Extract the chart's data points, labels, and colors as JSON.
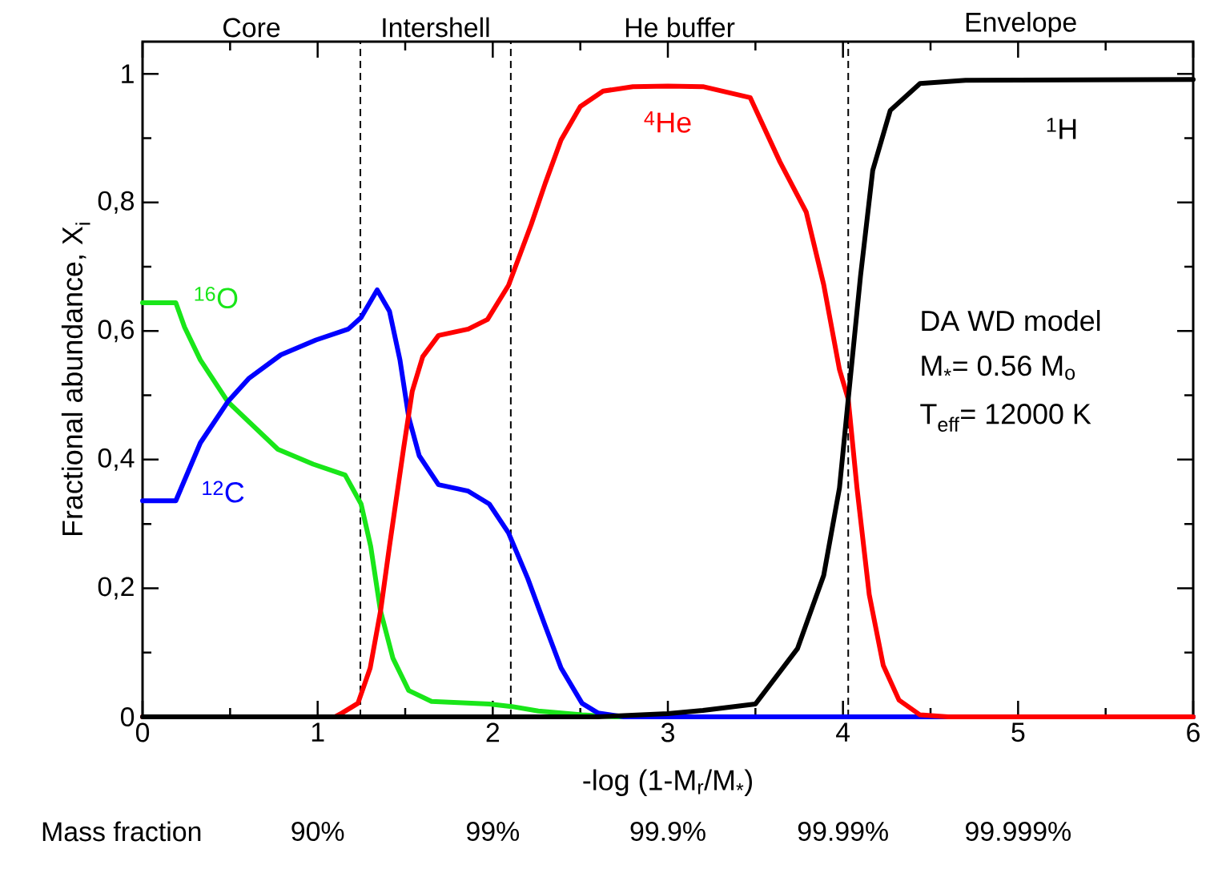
{
  "chart_data": {
    "type": "line",
    "xlabel": "-log (1-M$_{r}$/M$_{*}$)",
    "ylabel": "Fractional abundance, X$_{i}$",
    "xlim": [
      0,
      6
    ],
    "xticks": [
      0,
      1,
      2,
      3,
      4,
      5,
      6
    ],
    "ylim": [
      0,
      1.05
    ],
    "yticks": [
      0,
      {
        "value": 0.2,
        "label": "0,2"
      },
      {
        "value": 0.4,
        "label": "0,4"
      },
      {
        "value": 0.6,
        "label": "0,6"
      },
      {
        "value": 0.8,
        "label": "0,8"
      },
      1
    ],
    "line_style": "solid",
    "marker": "none",
    "legend": false,
    "grid": false,
    "series": [
      {
        "name": "$^{16}$O",
        "color": "#19e619",
        "x": [
          0,
          0.19,
          0.24,
          0.33,
          0.487,
          0.773,
          0.974,
          1.157,
          1.248,
          1.303,
          1.358,
          1.43,
          1.52,
          1.65,
          1.98,
          2.11,
          2.26,
          2.51,
          2.7,
          6
        ],
        "values": [
          0.644,
          0.644,
          0.606,
          0.555,
          0.49,
          0.416,
          0.393,
          0.376,
          0.331,
          0.265,
          0.166,
          0.091,
          0.041,
          0.024,
          0.02,
          0.016,
          0.009,
          0.003,
          0,
          0
        ]
      },
      {
        "name": "$^{12}$C",
        "color": "#0000ff",
        "x": [
          0,
          0.19,
          0.33,
          0.487,
          0.606,
          0.79,
          0.99,
          1.175,
          1.248,
          1.34,
          1.41,
          1.47,
          1.52,
          1.58,
          1.69,
          1.86,
          1.98,
          2.09,
          2.2,
          2.3,
          2.39,
          2.51,
          2.6,
          2.75,
          6
        ],
        "values": [
          0.336,
          0.336,
          0.426,
          0.49,
          0.526,
          0.563,
          0.586,
          0.603,
          0.621,
          0.664,
          0.631,
          0.555,
          0.466,
          0.406,
          0.361,
          0.351,
          0.331,
          0.286,
          0.215,
          0.141,
          0.076,
          0.021,
          0.006,
          0,
          0
        ]
      },
      {
        "name": "$^{4}$He",
        "color": "#ff0000",
        "x": [
          0,
          1.1,
          1.14,
          1.23,
          1.3,
          1.36,
          1.41,
          1.49,
          1.54,
          1.6,
          1.69,
          1.86,
          1.97,
          2.09,
          2.22,
          2.3,
          2.39,
          2.5,
          2.63,
          2.8,
          3.0,
          3.2,
          3.47,
          3.64,
          3.79,
          3.89,
          3.98,
          4.03,
          4.08,
          4.15,
          4.23,
          4.32,
          4.44,
          4.6,
          6
        ],
        "values": [
          0,
          0,
          0.006,
          0.021,
          0.076,
          0.166,
          0.265,
          0.416,
          0.506,
          0.56,
          0.593,
          0.603,
          0.618,
          0.671,
          0.766,
          0.83,
          0.897,
          0.949,
          0.973,
          0.98,
          0.981,
          0.98,
          0.963,
          0.863,
          0.785,
          0.672,
          0.54,
          0.494,
          0.356,
          0.19,
          0.08,
          0.026,
          0.003,
          0,
          0
        ]
      },
      {
        "name": "$^{1}$H",
        "color": "#000000",
        "x": [
          0,
          2.6,
          3.0,
          3.2,
          3.5,
          3.74,
          3.89,
          3.98,
          4.03,
          4.1,
          4.17,
          4.27,
          4.44,
          4.7,
          6
        ],
        "values": [
          0,
          0,
          0.005,
          0.01,
          0.02,
          0.106,
          0.22,
          0.356,
          0.494,
          0.685,
          0.85,
          0.943,
          0.985,
          0.99,
          0.991
        ]
      }
    ],
    "ref_lines": [
      {
        "axis": "x",
        "value": 1.244,
        "color": "#000000",
        "line_style": "dashed"
      },
      {
        "axis": "x",
        "value": 2.103,
        "color": "#000000",
        "line_style": "dashed"
      },
      {
        "axis": "x",
        "value": 4.03,
        "color": "#000000",
        "line_style": "dashed"
      }
    ],
    "annotations": [
      "Core",
      "Intershell",
      "He buffer",
      "Envelope",
      "DA WD model",
      "M$_{*}$= 0.56 M$_{o}$",
      "T$_{eff}$= 12000 K",
      "Mass fraction",
      "90%",
      "99%",
      "99.9%",
      "99.99%",
      "99.999%"
    ]
  }
}
